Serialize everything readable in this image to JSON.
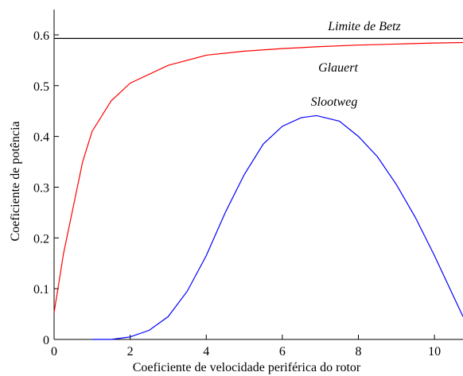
{
  "chart_data": {
    "type": "line",
    "x_label": "Coeficiente de velocidade periférica do rotor",
    "y_label": "Coeficiente de potência",
    "xlim": [
      0,
      10.75
    ],
    "ylim": [
      0,
      0.65
    ],
    "xticks": [
      0,
      2,
      4,
      6,
      8,
      10
    ],
    "yticks": [
      0,
      0.1,
      0.2,
      0.3,
      0.4,
      0.5,
      0.6
    ],
    "series": [
      {
        "name": "Limite de Betz",
        "color": "#000000",
        "x": [
          0,
          10.75
        ],
        "values": [
          0.593,
          0.593
        ]
      },
      {
        "name": "Glauert",
        "color": "#ff0000",
        "x": [
          0,
          0.25,
          0.5,
          0.75,
          1,
          1.5,
          2,
          3,
          4,
          5,
          6,
          7,
          8,
          9,
          10,
          10.75
        ],
        "values": [
          0.053,
          0.17,
          0.26,
          0.35,
          0.41,
          0.47,
          0.505,
          0.54,
          0.56,
          0.568,
          0.573,
          0.577,
          0.58,
          0.582,
          0.584,
          0.585
        ]
      },
      {
        "name": "Slootweg",
        "color": "#0000ff",
        "x": [
          1,
          1.5,
          2,
          2.5,
          3,
          3.5,
          4,
          4.5,
          5,
          5.5,
          6,
          6.5,
          6.9,
          7.5,
          8,
          8.5,
          9,
          9.5,
          10,
          10.5,
          10.75
        ],
        "values": [
          0,
          0,
          0.005,
          0.018,
          0.045,
          0.095,
          0.165,
          0.25,
          0.325,
          0.385,
          0.42,
          0.437,
          0.441,
          0.43,
          0.4,
          0.36,
          0.305,
          0.24,
          0.165,
          0.085,
          0.045
        ]
      }
    ]
  }
}
